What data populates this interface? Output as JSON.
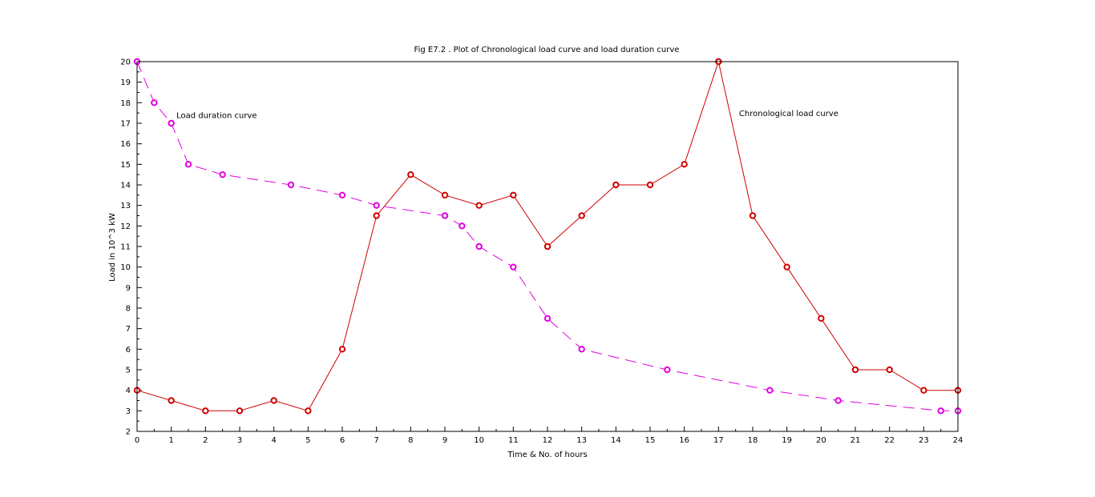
{
  "chart_data": {
    "type": "line",
    "title": "Fig E7.2 . Plot of Chronological load curve and load duration curve",
    "xlabel": "Time & No. of hours",
    "ylabel": "Load in 10^3 kW",
    "xlim": [
      0,
      24
    ],
    "ylim": [
      2,
      20
    ],
    "xticks": [
      0,
      1,
      2,
      3,
      4,
      5,
      6,
      7,
      8,
      9,
      10,
      11,
      12,
      13,
      14,
      15,
      16,
      17,
      18,
      19,
      20,
      21,
      22,
      23,
      24
    ],
    "yticks": [
      2,
      3,
      4,
      5,
      6,
      7,
      8,
      9,
      10,
      11,
      12,
      13,
      14,
      15,
      16,
      17,
      18,
      19,
      20
    ],
    "grid": false,
    "series": [
      {
        "key": "chronological",
        "color": "#d00000",
        "line_style": "solid",
        "marker": "circle",
        "points": [
          [
            0,
            4
          ],
          [
            1,
            3.5
          ],
          [
            2,
            3
          ],
          [
            3,
            3
          ],
          [
            4,
            3.5
          ],
          [
            5,
            3
          ],
          [
            6,
            6
          ],
          [
            7,
            12.5
          ],
          [
            8,
            14.5
          ],
          [
            9,
            13.5
          ],
          [
            10,
            13
          ],
          [
            11,
            13.5
          ],
          [
            12,
            11
          ],
          [
            13,
            12.5
          ],
          [
            14,
            14
          ],
          [
            15,
            14
          ],
          [
            16,
            15
          ],
          [
            17,
            20
          ],
          [
            18,
            12.5
          ],
          [
            19,
            10
          ],
          [
            20,
            7.5
          ],
          [
            21,
            5
          ],
          [
            22,
            5
          ],
          [
            23,
            4
          ],
          [
            24,
            4
          ]
        ]
      },
      {
        "key": "duration",
        "color": "#e000e0",
        "line_style": "dashed",
        "marker": "circle",
        "points": [
          [
            0,
            20
          ],
          [
            0.5,
            18
          ],
          [
            1,
            17
          ],
          [
            1.5,
            15
          ],
          [
            2.5,
            14.5
          ],
          [
            4.5,
            14
          ],
          [
            6,
            13.5
          ],
          [
            7,
            13
          ],
          [
            9,
            12.5
          ],
          [
            9.5,
            12
          ],
          [
            10,
            11
          ],
          [
            11,
            10
          ],
          [
            12,
            7.5
          ],
          [
            13,
            6
          ],
          [
            15.5,
            5
          ],
          [
            18.5,
            4
          ],
          [
            20.5,
            3.5
          ],
          [
            23.5,
            3
          ],
          [
            24,
            3
          ]
        ]
      }
    ],
    "annotations": [
      {
        "text": "Load duration curve",
        "x": 1.15,
        "y": 17.25
      },
      {
        "text": "Chronological load curve",
        "x": 17.6,
        "y": 17.35
      }
    ]
  }
}
